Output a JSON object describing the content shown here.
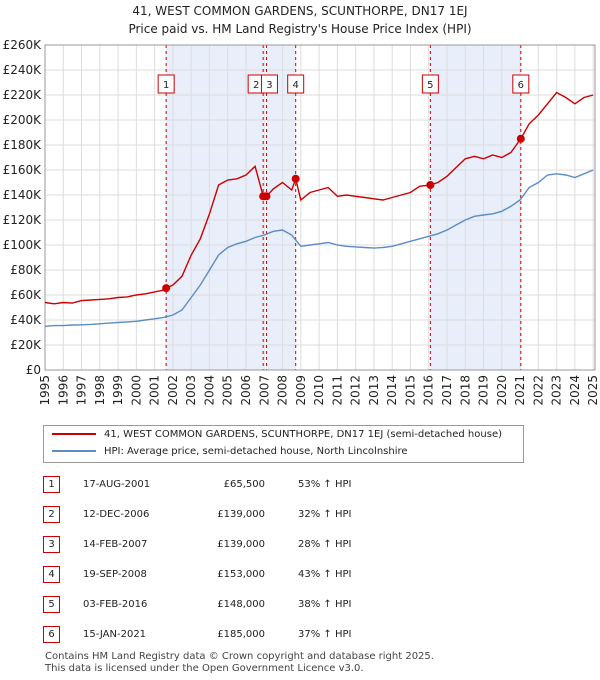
{
  "title_line1": "41, WEST COMMON GARDENS, SCUNTHORPE, DN17 1EJ",
  "title_line2": "Price paid vs. HM Land Registry's House Price Index (HPI)",
  "colors": {
    "property": "#cc0000",
    "hpi": "#5b8cc5",
    "shade": "#e8eefa",
    "grid": "#dddddd",
    "vline": "#cc0000"
  },
  "chart_data": {
    "type": "line",
    "title": "Price paid vs. HM Land Registry's House Price Index (HPI)",
    "xlabel": "",
    "ylabel": "",
    "xlim": [
      1995,
      2025.1
    ],
    "ylim": [
      0,
      260000
    ],
    "y_ticks": [
      0,
      20000,
      40000,
      60000,
      80000,
      100000,
      120000,
      140000,
      160000,
      180000,
      200000,
      220000,
      240000,
      260000
    ],
    "y_tick_labels": [
      "£0",
      "£20K",
      "£40K",
      "£60K",
      "£80K",
      "£100K",
      "£120K",
      "£140K",
      "£160K",
      "£180K",
      "£200K",
      "£220K",
      "£240K",
      "£260K"
    ],
    "x_ticks": [
      1995,
      1996,
      1997,
      1998,
      1999,
      2000,
      2001,
      2002,
      2003,
      2004,
      2005,
      2006,
      2007,
      2008,
      2009,
      2010,
      2011,
      2012,
      2013,
      2014,
      2015,
      2016,
      2017,
      2018,
      2019,
      2020,
      2021,
      2022,
      2023,
      2024,
      2025
    ],
    "x_tick_labels": [
      "1995",
      "1996",
      "1997",
      "1998",
      "1999",
      "2000",
      "2001",
      "2002",
      "2003",
      "2004",
      "2005",
      "2006",
      "2007",
      "2008",
      "2009",
      "2010",
      "2011",
      "2012",
      "2013",
      "2014",
      "2015",
      "2016",
      "2017",
      "2018",
      "2019",
      "2020",
      "2021",
      "2022",
      "2023",
      "2024",
      "2025"
    ],
    "grid": true,
    "legend_position": "below-chart",
    "series": [
      {
        "name": "41, WEST COMMON GARDENS, SCUNTHORPE, DN17 1EJ (semi-detached house)",
        "color": "#cc0000",
        "x": [
          1995,
          1995.5,
          1996,
          1996.5,
          1997,
          1997.5,
          1998,
          1998.5,
          1999,
          1999.5,
          2000,
          2000.5,
          2001,
          2001.5,
          2001.63,
          2002,
          2002.5,
          2003,
          2003.5,
          2004,
          2004.5,
          2005,
          2005.5,
          2006,
          2006.5,
          2006.94,
          2007.12,
          2007.5,
          2008,
          2008.5,
          2008.72,
          2009,
          2009.5,
          2010,
          2010.5,
          2011,
          2011.5,
          2012,
          2012.5,
          2013,
          2013.5,
          2014,
          2014.5,
          2015,
          2015.5,
          2016.09,
          2016.5,
          2017,
          2017.5,
          2018,
          2018.5,
          2019,
          2019.5,
          2020,
          2020.5,
          2021.04,
          2021.5,
          2022,
          2022.5,
          2023,
          2023.5,
          2024,
          2024.5,
          2025
        ],
        "values": [
          54000,
          53000,
          54000,
          53500,
          55500,
          56000,
          56500,
          57000,
          58000,
          58500,
          60000,
          61000,
          62500,
          64000,
          65500,
          68000,
          75000,
          92000,
          105000,
          125000,
          148000,
          152000,
          153000,
          156000,
          163000,
          139000,
          139000,
          145000,
          150000,
          144000,
          153000,
          136000,
          142000,
          144000,
          146000,
          139000,
          140000,
          139000,
          138000,
          137000,
          136000,
          138000,
          140000,
          142000,
          147000,
          148000,
          150000,
          155000,
          162000,
          169000,
          171000,
          169000,
          172000,
          170000,
          174000,
          185000,
          197000,
          204000,
          213000,
          222000,
          218000,
          213000,
          218000,
          220000
        ]
      },
      {
        "name": "HPI: Average price, semi-detached house, North Lincolnshire",
        "color": "#5b8cc5",
        "x": [
          1995,
          1995.5,
          1996,
          1996.5,
          1997,
          1997.5,
          1998,
          1998.5,
          1999,
          1999.5,
          2000,
          2000.5,
          2001,
          2001.5,
          2002,
          2002.5,
          2003,
          2003.5,
          2004,
          2004.5,
          2005,
          2005.5,
          2006,
          2006.5,
          2007,
          2007.5,
          2008,
          2008.5,
          2009,
          2009.5,
          2010,
          2010.5,
          2011,
          2011.5,
          2012,
          2012.5,
          2013,
          2013.5,
          2014,
          2014.5,
          2015,
          2015.5,
          2016,
          2016.5,
          2017,
          2017.5,
          2018,
          2018.5,
          2019,
          2019.5,
          2020,
          2020.5,
          2021,
          2021.5,
          2022,
          2022.5,
          2023,
          2023.5,
          2024,
          2024.5,
          2025
        ],
        "values": [
          35000,
          35500,
          35500,
          36000,
          36200,
          36500,
          37000,
          37500,
          38000,
          38500,
          39000,
          40000,
          41000,
          42000,
          44000,
          48000,
          58000,
          68000,
          80000,
          92000,
          98000,
          101000,
          103000,
          106000,
          108000,
          111000,
          112000,
          108000,
          99000,
          100000,
          101000,
          102000,
          100000,
          99000,
          98500,
          98000,
          97500,
          98000,
          99000,
          101000,
          103000,
          105000,
          107000,
          109000,
          112000,
          116000,
          120000,
          123000,
          124000,
          125000,
          127000,
          131000,
          136000,
          146000,
          150000,
          156000,
          157000,
          156000,
          154000,
          157000,
          160000
        ]
      }
    ],
    "transactions": [
      {
        "label": "1",
        "x": 2001.63,
        "price": 65500
      },
      {
        "label": "2",
        "x": 2006.94,
        "price": 139000
      },
      {
        "label": "3",
        "x": 2007.12,
        "price": 139000
      },
      {
        "label": "4",
        "x": 2008.72,
        "price": 153000
      },
      {
        "label": "5",
        "x": 2016.09,
        "price": 148000
      },
      {
        "label": "6",
        "x": 2021.04,
        "price": 185000
      }
    ],
    "shaded_ranges": [
      [
        2001.63,
        2006.94
      ],
      [
        2007.12,
        2008.72
      ],
      [
        2016.09,
        2021.04
      ]
    ]
  },
  "legend": {
    "property": "41, WEST COMMON GARDENS, SCUNTHORPE, DN17 1EJ (semi-detached house)",
    "hpi": "HPI: Average price, semi-detached house, North Lincolnshire"
  },
  "table": [
    {
      "num": "1",
      "date": "17-AUG-2001",
      "price": "£65,500",
      "hpi": "53% ↑ HPI"
    },
    {
      "num": "2",
      "date": "12-DEC-2006",
      "price": "£139,000",
      "hpi": "32% ↑ HPI"
    },
    {
      "num": "3",
      "date": "14-FEB-2007",
      "price": "£139,000",
      "hpi": "28% ↑ HPI"
    },
    {
      "num": "4",
      "date": "19-SEP-2008",
      "price": "£153,000",
      "hpi": "43% ↑ HPI"
    },
    {
      "num": "5",
      "date": "03-FEB-2016",
      "price": "£148,000",
      "hpi": "38% ↑ HPI"
    },
    {
      "num": "6",
      "date": "15-JAN-2021",
      "price": "£185,000",
      "hpi": "37% ↑ HPI"
    }
  ],
  "footer_line1": "Contains HM Land Registry data © Crown copyright and database right 2025.",
  "footer_line2": "This data is licensed under the Open Government Licence v3.0."
}
